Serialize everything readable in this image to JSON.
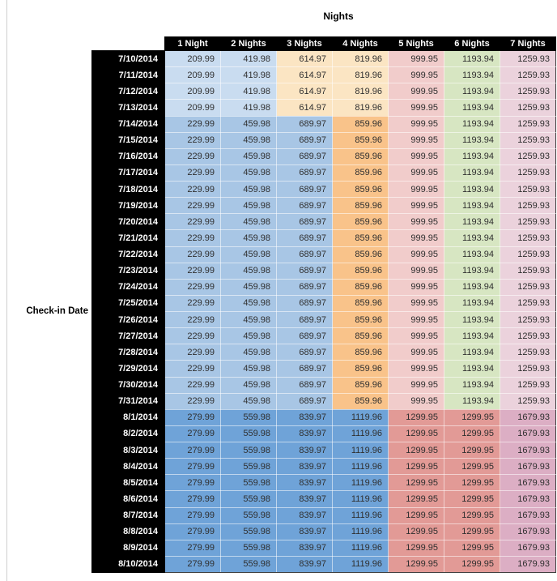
{
  "chart_data": {
    "type": "table",
    "title": "Nights",
    "row_label": "Check-in Date",
    "columns": [
      "1 Night",
      "2 Nights",
      "3 Nights",
      "4 Nights",
      "5 Nights",
      "6 Nights",
      "7 Nights"
    ],
    "sections": [
      {
        "dates": [
          "7/10/2014",
          "7/11/2014",
          "7/12/2014",
          "7/13/2014"
        ],
        "values": [
          209.99,
          419.98,
          614.97,
          819.96,
          999.95,
          1193.94,
          1259.93
        ],
        "cell_colors": [
          "#c9dcf0",
          "#c9dcf0",
          "#fbe5c3",
          "#fbe5c3",
          "#f1cccb",
          "#d7e6c2",
          "#ebd2dc"
        ]
      },
      {
        "dates": [
          "7/14/2014",
          "7/15/2014",
          "7/16/2014",
          "7/17/2014",
          "7/18/2014",
          "7/19/2014",
          "7/20/2014",
          "7/21/2014",
          "7/22/2014",
          "7/23/2014",
          "7/24/2014",
          "7/25/2014",
          "7/26/2014",
          "7/27/2014",
          "7/28/2014",
          "7/29/2014",
          "7/30/2014",
          "7/31/2014"
        ],
        "values": [
          229.99,
          459.98,
          689.97,
          859.96,
          999.95,
          1193.94,
          1259.93
        ],
        "cell_colors": [
          "#a8c6e5",
          "#a8c6e5",
          "#a8c6e5",
          "#f9c38a",
          "#f1cccb",
          "#d7e6c2",
          "#ebd2dc"
        ]
      },
      {
        "dates": [
          "8/1/2014",
          "8/2/2014",
          "8/3/2014",
          "8/4/2014",
          "8/5/2014",
          "8/6/2014",
          "8/7/2014",
          "8/8/2014",
          "8/9/2014",
          "8/10/2014"
        ],
        "values": [
          279.99,
          559.98,
          839.97,
          1119.96,
          1299.95,
          1299.95,
          1679.93
        ],
        "cell_colors": [
          "#6fa3d8",
          "#6fa3d8",
          "#6fa3d8",
          "#6fa3d8",
          "#e29a96",
          "#e29a96",
          "#dcaec4"
        ]
      }
    ]
  },
  "colors": {
    "header_bg": "#000000",
    "header_text": "#ffffff",
    "cell_text": "#2f2f2f",
    "tier1_blue": "#c9dcf0",
    "tier1_orange": "#fbe5c3",
    "tier2_blue": "#a8c6e5",
    "tier2_orange": "#f9c38a",
    "tier3_blue": "#6fa3d8",
    "tier3_red": "#e29a96",
    "pink": "#f1cccb",
    "green": "#d7e6c2",
    "light_mauve": "#ebd2dc",
    "dark_mauve": "#dcaec4"
  }
}
